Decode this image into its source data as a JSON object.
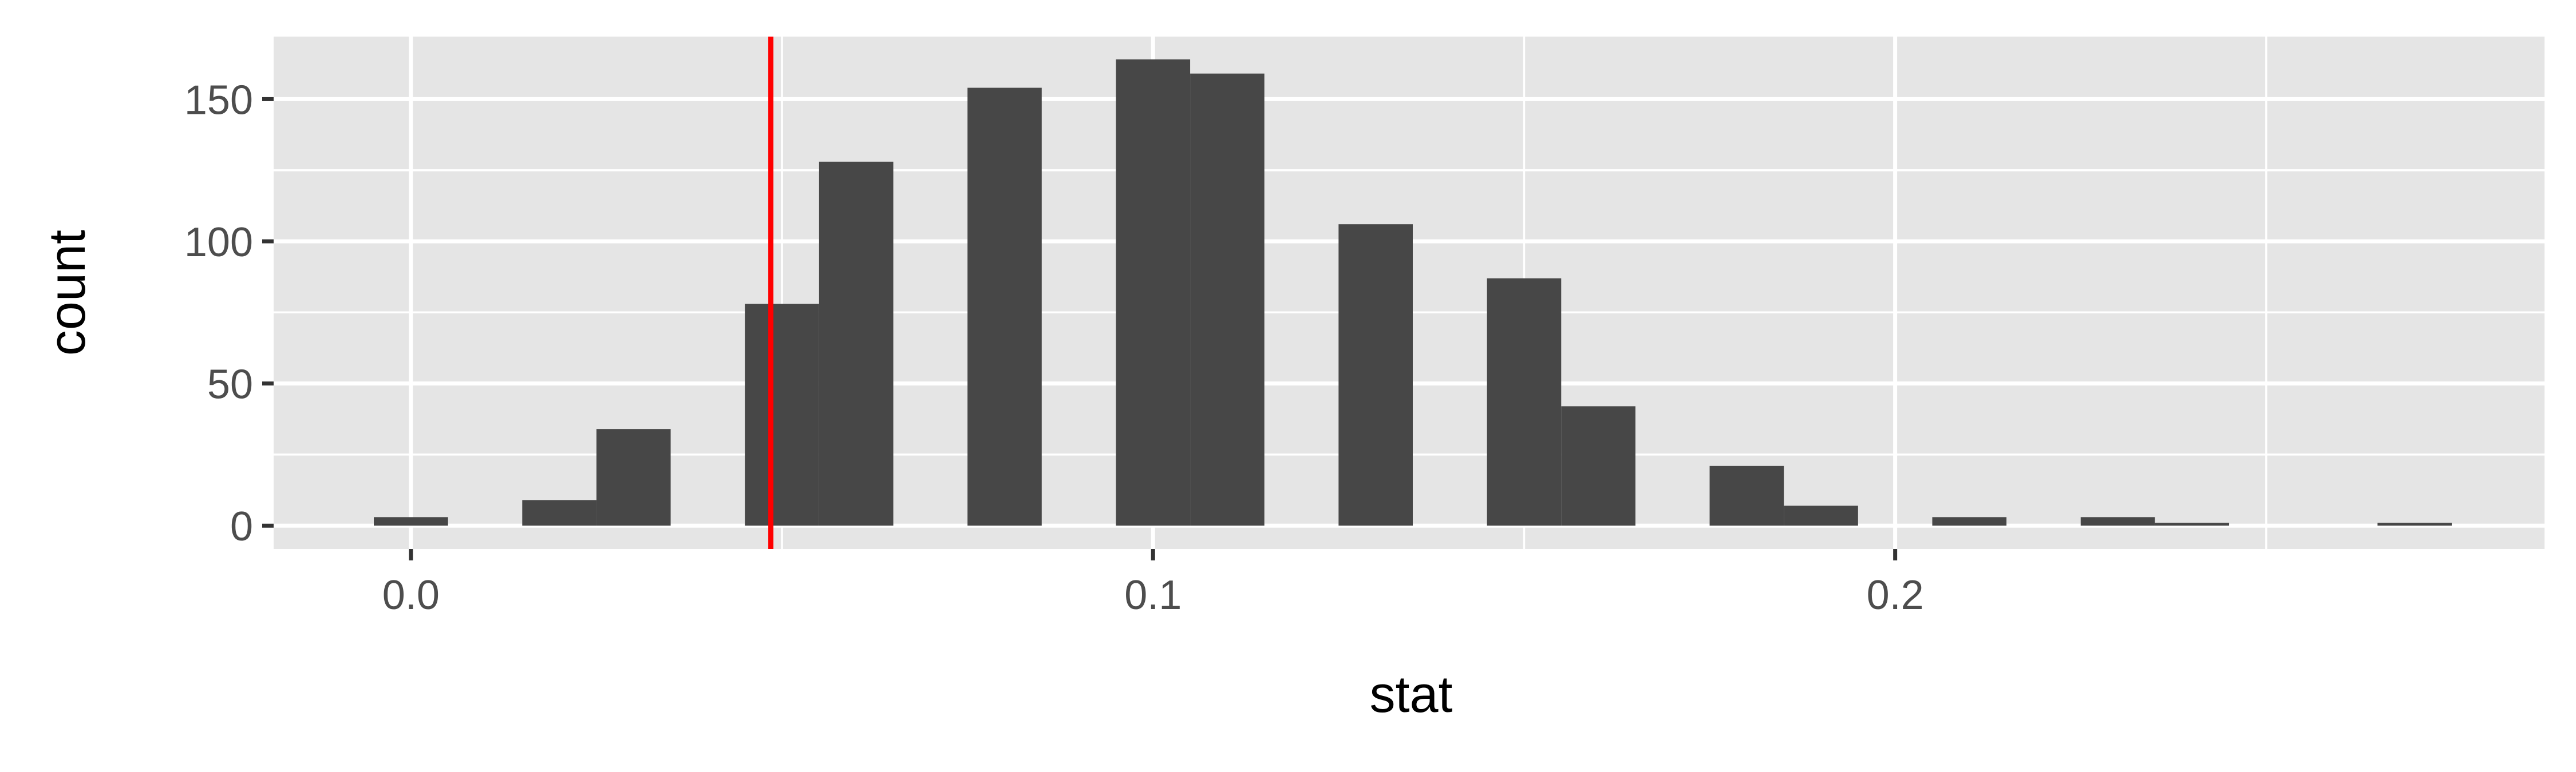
{
  "chart_data": {
    "type": "bar",
    "title": "",
    "xlabel": "stat",
    "ylabel": "count",
    "xlim": [
      -0.0185,
      0.2875
    ],
    "ylim": [
      -8.2,
      172
    ],
    "x_ticks": [
      {
        "value": 0.0,
        "label": "0.0"
      },
      {
        "value": 0.1,
        "label": "0.1"
      },
      {
        "value": 0.2,
        "label": "0.2"
      }
    ],
    "y_ticks": [
      {
        "value": 0,
        "label": "0"
      },
      {
        "value": 50,
        "label": "50"
      },
      {
        "value": 100,
        "label": "100"
      },
      {
        "value": 150,
        "label": "150"
      }
    ],
    "x_minor_gridlines": [
      0.05,
      0.15,
      0.25
    ],
    "y_minor_gridlines": [
      25,
      75,
      125
    ],
    "grid": true,
    "bin_width": 0.01,
    "bins": [
      {
        "x": 0.0,
        "count": 3
      },
      {
        "x": 0.02,
        "count": 9
      },
      {
        "x": 0.03,
        "count": 34
      },
      {
        "x": 0.05,
        "count": 78
      },
      {
        "x": 0.06,
        "count": 128
      },
      {
        "x": 0.08,
        "count": 154
      },
      {
        "x": 0.1,
        "count": 164
      },
      {
        "x": 0.11,
        "count": 159
      },
      {
        "x": 0.13,
        "count": 106
      },
      {
        "x": 0.15,
        "count": 87
      },
      {
        "x": 0.16,
        "count": 42
      },
      {
        "x": 0.18,
        "count": 21
      },
      {
        "x": 0.19,
        "count": 7
      },
      {
        "x": 0.21,
        "count": 3
      },
      {
        "x": 0.23,
        "count": 3
      },
      {
        "x": 0.24,
        "count": 1
      },
      {
        "x": 0.27,
        "count": 1
      }
    ],
    "reference_line": {
      "x": 0.0485
    },
    "colors": {
      "panel": "#e5e5e5",
      "grid": "#ffffff",
      "bar": "#474747",
      "reference_line": "#ff0000",
      "tick_mark": "#333333"
    }
  }
}
